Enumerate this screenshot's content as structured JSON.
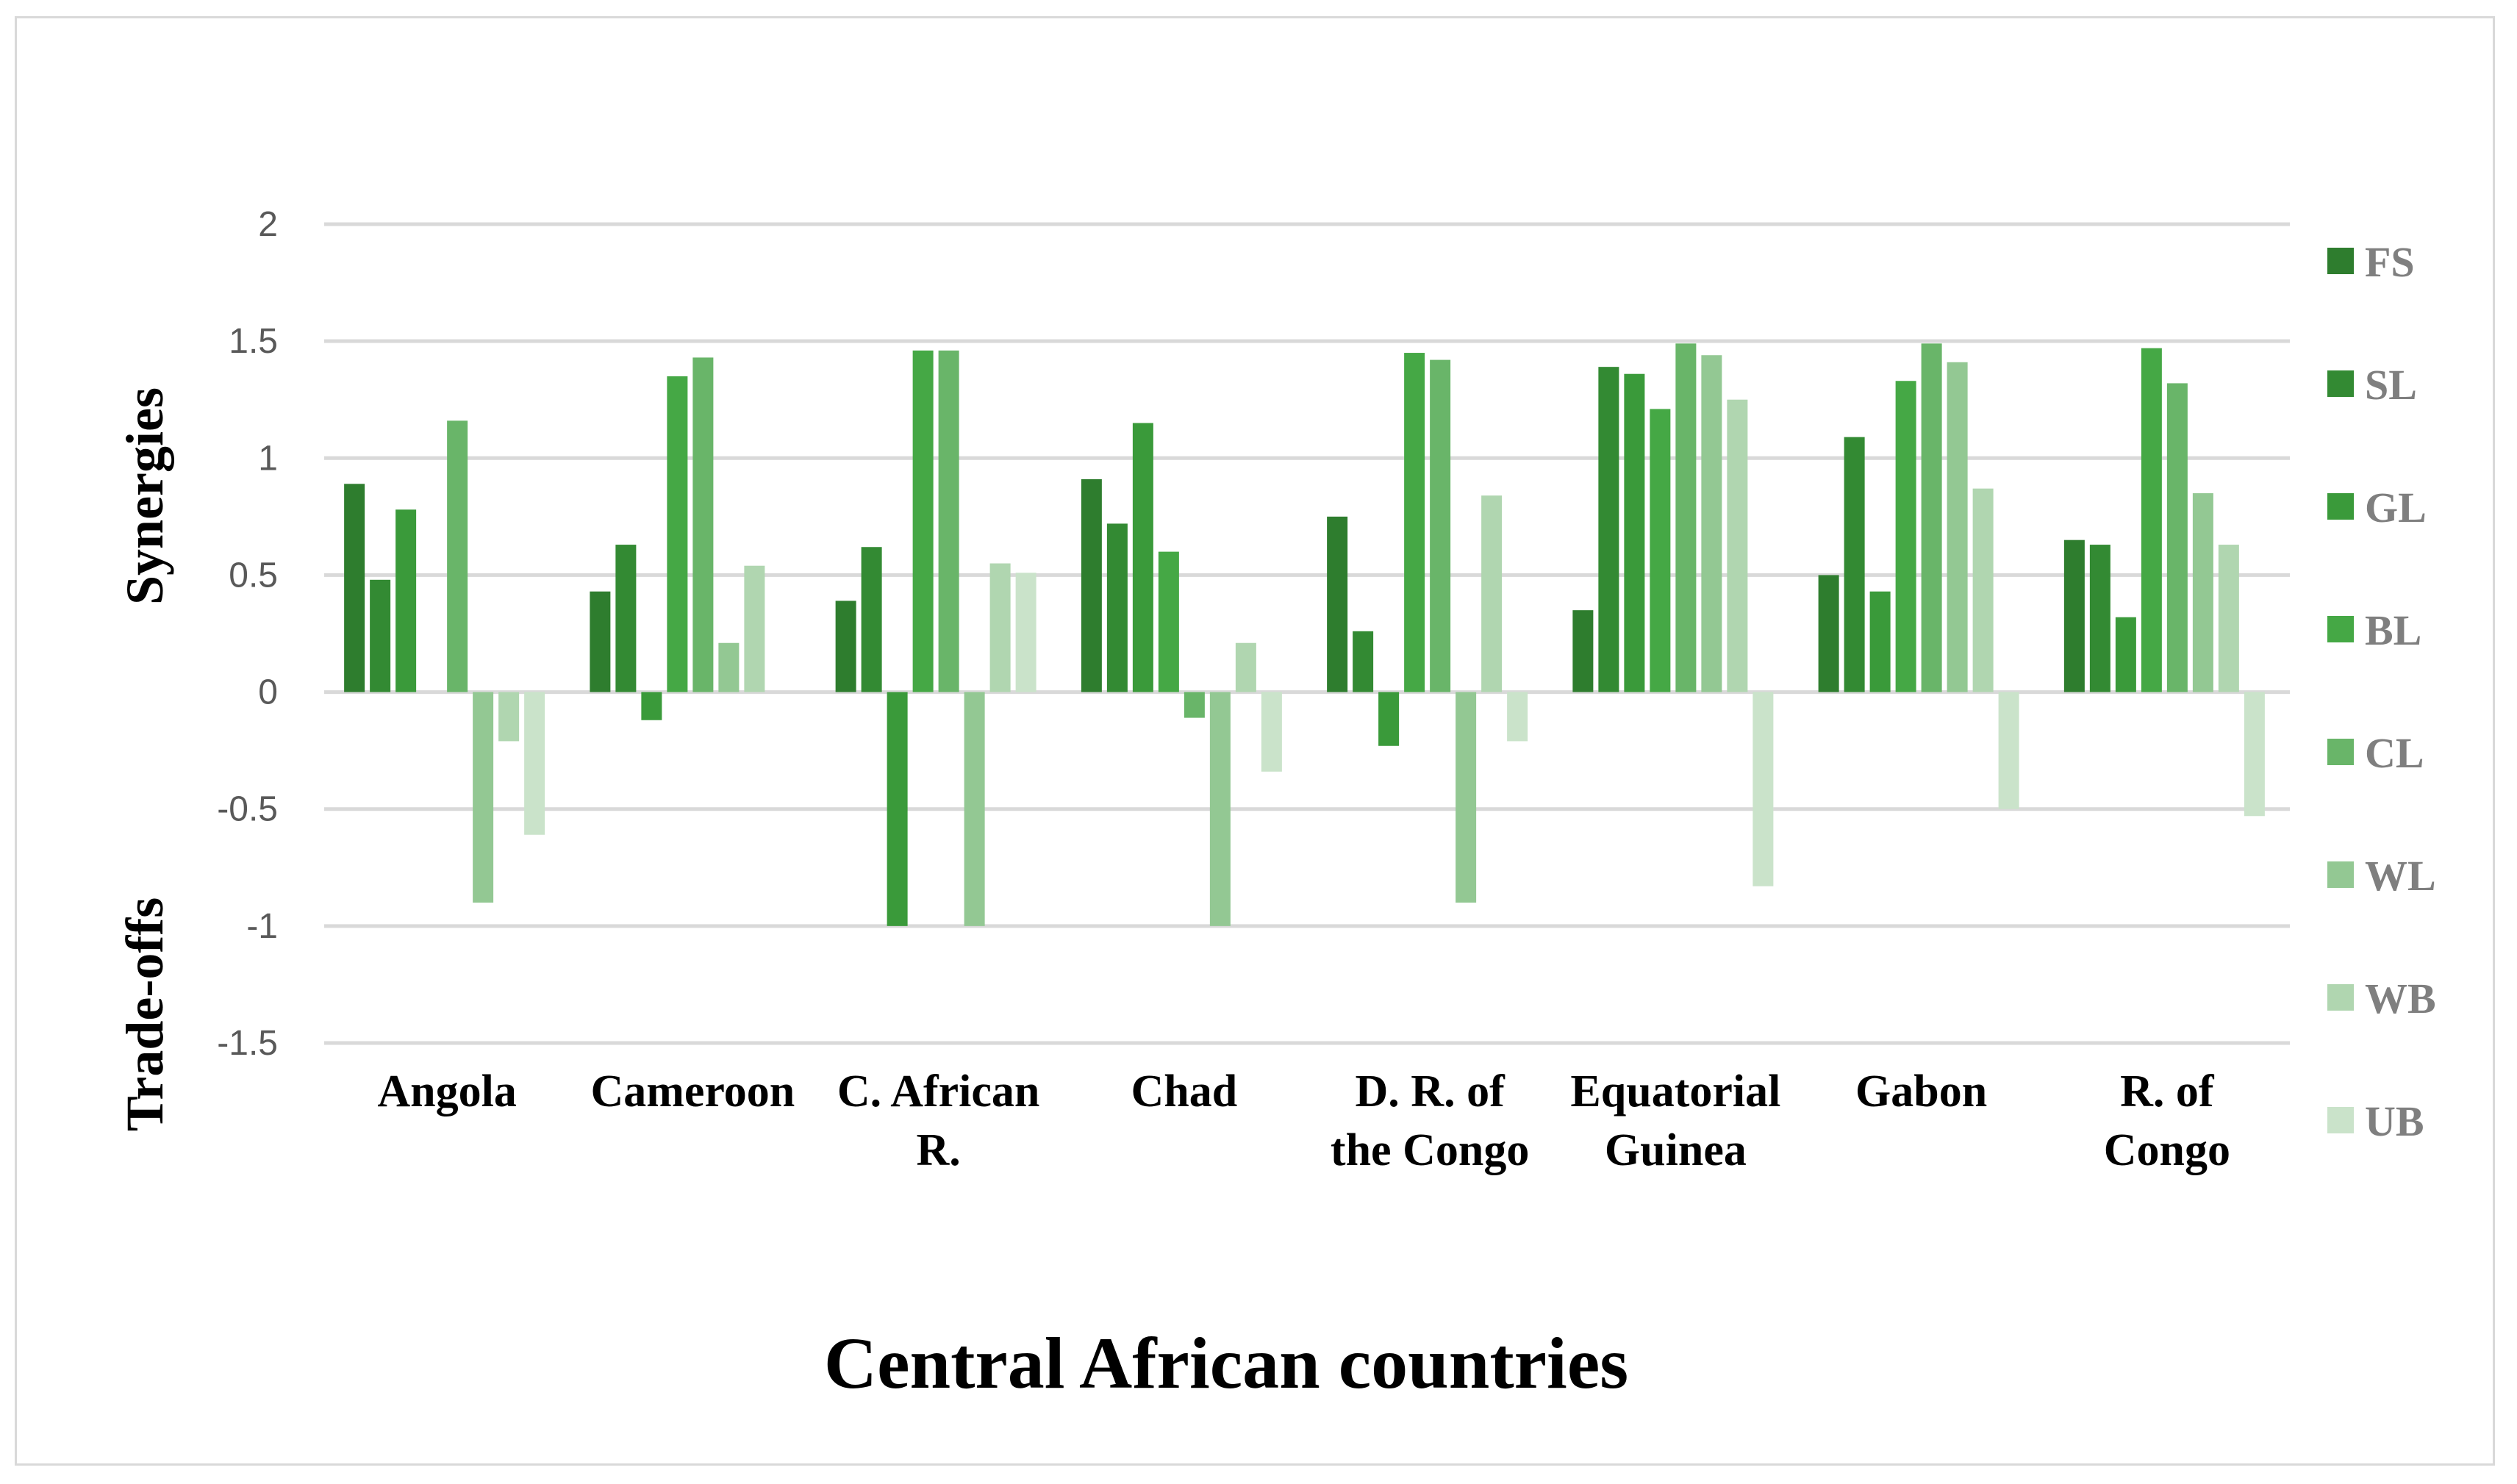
{
  "chart_data": {
    "type": "bar",
    "xlabel": "Central African countries",
    "ylabel_top": "Synergies",
    "ylabel_bottom": "Trade-offs",
    "ylim": [
      -1.5,
      2
    ],
    "yticks": [
      -1.5,
      -1,
      -0.5,
      0,
      0.5,
      1,
      1.5,
      2
    ],
    "ytick_labels": [
      "-1.5",
      "-1",
      "-0.5",
      "0",
      "0.5",
      "1",
      "1.5",
      "2"
    ],
    "grid": true,
    "legend_position": "right",
    "categories": [
      [
        "Angola"
      ],
      [
        "Cameroon"
      ],
      [
        "C. African",
        "R."
      ],
      [
        "Chad"
      ],
      [
        "D. R. of",
        "the Congo"
      ],
      [
        "Equatorial",
        "Guinea"
      ],
      [
        "Gabon"
      ],
      [
        "R. of",
        "Congo"
      ]
    ],
    "series": [
      {
        "name": "FS",
        "color": "#2e7d2e",
        "values": [
          0.89,
          0.43,
          0.39,
          0.91,
          0.75,
          0.35,
          0.5,
          0.65
        ]
      },
      {
        "name": "SL",
        "color": "#338a33",
        "values": [
          0.48,
          0.63,
          0.62,
          0.72,
          0.26,
          1.39,
          1.09,
          0.63
        ]
      },
      {
        "name": "GL",
        "color": "#3a9a3a",
        "values": [
          0.78,
          -0.12,
          -1.0,
          1.15,
          -0.23,
          1.36,
          0.43,
          0.32
        ]
      },
      {
        "name": "BL",
        "color": "#45a845",
        "values": [
          0.0,
          1.35,
          1.46,
          0.6,
          1.45,
          1.21,
          1.33,
          1.47
        ]
      },
      {
        "name": "CL",
        "color": "#69b569",
        "values": [
          1.16,
          1.43,
          1.46,
          -0.11,
          1.42,
          1.49,
          1.49,
          1.32
        ]
      },
      {
        "name": "WL",
        "color": "#93c893",
        "values": [
          -0.9,
          0.21,
          -1.0,
          -1.0,
          -0.9,
          1.44,
          1.41,
          0.85
        ]
      },
      {
        "name": "WB",
        "color": "#b0d6b0",
        "values": [
          -0.21,
          0.54,
          0.55,
          0.21,
          0.84,
          1.25,
          0.87,
          0.63
        ]
      },
      {
        "name": "UB",
        "color": "#cae3ca",
        "values": [
          -0.61,
          0.0,
          0.51,
          -0.34,
          -0.21,
          -0.83,
          -0.5,
          -0.53
        ]
      }
    ]
  }
}
